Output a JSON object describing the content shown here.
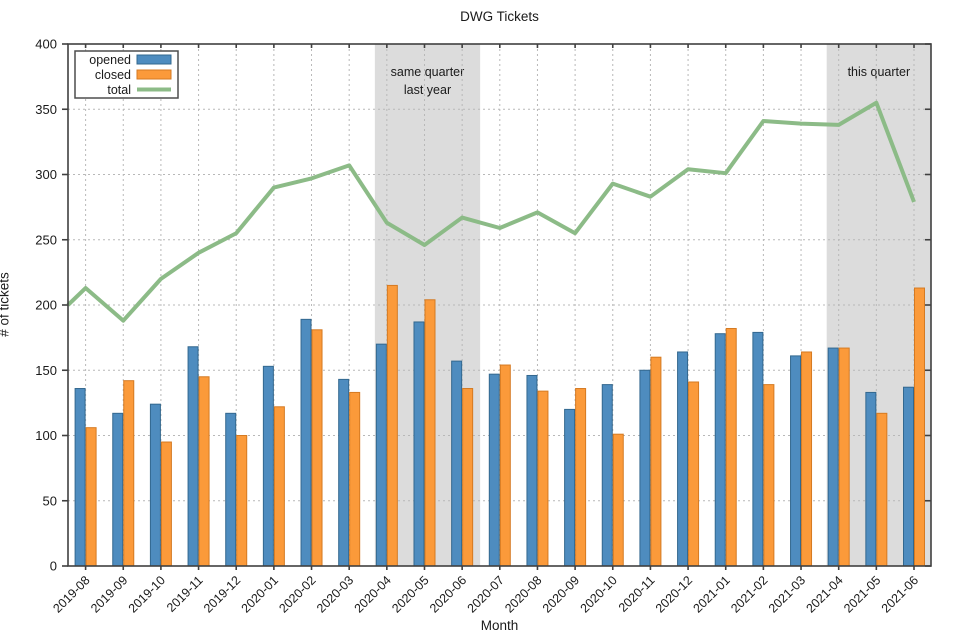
{
  "chart_data": {
    "type": "bar",
    "title": "DWG Tickets",
    "xlabel": "Month",
    "ylabel": "# of tickets",
    "ylim": [
      0,
      400
    ],
    "y_ticks": [
      0,
      50,
      100,
      150,
      200,
      250,
      300,
      350,
      400
    ],
    "grid": true,
    "legend_position": "top-left",
    "categories": [
      "2019-08",
      "2019-09",
      "2019-10",
      "2019-11",
      "2019-12",
      "2020-01",
      "2020-02",
      "2020-03",
      "2020-04",
      "2020-05",
      "2020-06",
      "2020-07",
      "2020-08",
      "2020-09",
      "2020-10",
      "2020-11",
      "2020-12",
      "2021-01",
      "2021-02",
      "2021-03",
      "2021-04",
      "2021-05",
      "2021-06"
    ],
    "series": [
      {
        "name": "opened",
        "type": "bar",
        "color": "#4e8cbf",
        "edge_color": "#33688f",
        "values": [
          136,
          117,
          124,
          168,
          117,
          153,
          189,
          143,
          170,
          187,
          157,
          147,
          146,
          120,
          139,
          150,
          164,
          178,
          179,
          161,
          167,
          133,
          137
        ]
      },
      {
        "name": "closed",
        "type": "bar",
        "color": "#fb9a3a",
        "edge_color": "#d57a22",
        "values": [
          106,
          142,
          95,
          145,
          100,
          122,
          181,
          133,
          215,
          204,
          136,
          154,
          134,
          136,
          101,
          160,
          141,
          182,
          139,
          164,
          167,
          117,
          213
        ]
      },
      {
        "name": "total",
        "type": "line",
        "color": "#8cbb87",
        "line_width": 4,
        "left_edge_entry_value": 200,
        "values": [
          213,
          188,
          220,
          240,
          255,
          290,
          297,
          307,
          263,
          246,
          267,
          259,
          271,
          255,
          293,
          283,
          304,
          301,
          341,
          339,
          338,
          355,
          279
        ]
      }
    ],
    "bands": [
      {
        "label_lines": [
          "same quarter",
          "last year"
        ],
        "from": "2020-04",
        "to": "2020-06",
        "color": "#dcdcdc",
        "extend_to_edge": false
      },
      {
        "label_lines": [
          "this quarter"
        ],
        "from": "2021-04",
        "to": "2021-06",
        "color": "#dcdcdc",
        "extend_to_edge": true
      }
    ],
    "colors": {
      "grid": "#b8b8b8",
      "axis_border": "#404040",
      "legend_border": "#4d4d4d",
      "text": "#1a1a1a",
      "background": "#ffffff"
    }
  }
}
